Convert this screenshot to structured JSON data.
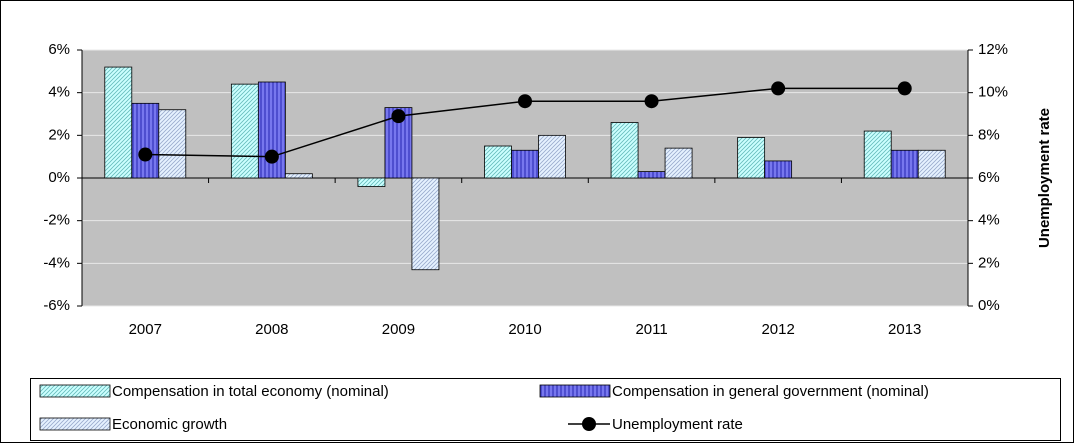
{
  "chart_data": {
    "type": "bar",
    "categories": [
      "2007",
      "2008",
      "2009",
      "2010",
      "2011",
      "2012",
      "2013"
    ],
    "series": [
      {
        "name": "Compensation in total economy (nominal)",
        "color": "#ccffff",
        "values": [
          5.2,
          4.4,
          -0.4,
          1.5,
          2.6,
          1.9,
          2.2
        ]
      },
      {
        "name": "Compensation in general government (nominal)",
        "color": "#7777ee",
        "values": [
          3.5,
          4.5,
          3.3,
          1.3,
          0.3,
          0.8,
          1.3
        ]
      },
      {
        "name": "Economic growth",
        "color": "#e6f2ff",
        "values": [
          3.2,
          0.2,
          -4.3,
          2.0,
          1.4,
          0,
          1.3
        ]
      },
      {
        "name": "Unemployment rate",
        "type": "line",
        "axis": "y2",
        "color": "#000000",
        "values": [
          7.1,
          7.0,
          8.9,
          9.6,
          9.6,
          10.2,
          10.2
        ]
      }
    ],
    "y2_label": "Unemployment rate",
    "ylim": [
      -6,
      6
    ],
    "yticks": [
      {
        "value": -6,
        "label": "-6%"
      },
      {
        "value": -4,
        "label": "-4%"
      },
      {
        "value": -2,
        "label": "-2%"
      },
      {
        "value": 0,
        "label": "0%"
      },
      {
        "value": 2,
        "label": "2%"
      },
      {
        "value": 4,
        "label": "4%"
      },
      {
        "value": 6,
        "label": "6%"
      }
    ],
    "y2lim": [
      0,
      12
    ],
    "y2ticks": [
      {
        "value": 0,
        "label": "0%"
      },
      {
        "value": 2,
        "label": "2%"
      },
      {
        "value": 4,
        "label": "4%"
      },
      {
        "value": 6,
        "label": "6%"
      },
      {
        "value": 8,
        "label": "8%"
      },
      {
        "value": 10,
        "label": "10%"
      },
      {
        "value": 12,
        "label": "12%"
      }
    ],
    "grid": true
  }
}
